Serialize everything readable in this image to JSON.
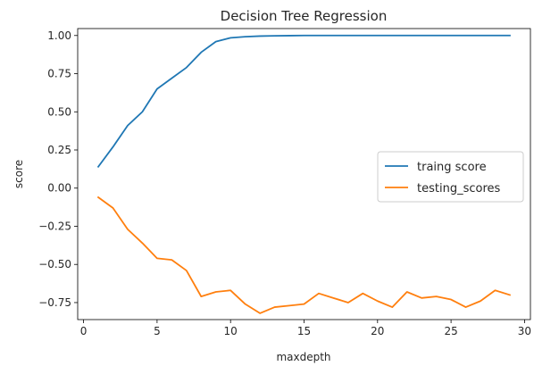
{
  "chart_data": {
    "type": "line",
    "title": "Decision Tree Regression",
    "xlabel": "maxdepth",
    "ylabel": "score",
    "xlim": [
      -0.4,
      30.4
    ],
    "ylim": [
      -0.8614,
      1.0455
    ],
    "xticks": [
      0,
      5,
      10,
      15,
      20,
      25,
      30
    ],
    "yticks": [
      -0.75,
      -0.5,
      -0.25,
      0.0,
      0.25,
      0.5,
      0.75,
      1.0
    ],
    "ytick_labels": [
      "−0.75",
      "−0.50",
      "−0.25",
      "0.00",
      "0.25",
      "0.50",
      "0.75",
      "1.00"
    ],
    "grid": false,
    "legend_position": "center-right",
    "x": [
      1,
      2,
      3,
      4,
      5,
      6,
      7,
      8,
      9,
      10,
      11,
      12,
      13,
      14,
      15,
      16,
      17,
      18,
      19,
      20,
      21,
      22,
      23,
      24,
      25,
      26,
      27,
      28,
      29
    ],
    "series": [
      {
        "name": "traing score",
        "color": "#1f77b4",
        "values": [
          0.14,
          0.27,
          0.41,
          0.5,
          0.65,
          0.72,
          0.79,
          0.89,
          0.96,
          0.985,
          0.992,
          0.996,
          0.998,
          0.999,
          1.0,
          1.0,
          1.0,
          1.0,
          1.0,
          1.0,
          1.0,
          1.0,
          1.0,
          1.0,
          1.0,
          1.0,
          1.0,
          1.0,
          1.0
        ]
      },
      {
        "name": "testing_scores",
        "color": "#ff7f0e",
        "values": [
          -0.06,
          -0.13,
          -0.27,
          -0.36,
          -0.46,
          -0.47,
          -0.54,
          -0.71,
          -0.68,
          -0.67,
          -0.76,
          -0.82,
          -0.78,
          -0.77,
          -0.76,
          -0.69,
          -0.72,
          -0.75,
          -0.69,
          -0.74,
          -0.78,
          -0.68,
          -0.72,
          -0.71,
          -0.73,
          -0.78,
          -0.74,
          -0.67,
          -0.7
        ]
      }
    ]
  }
}
